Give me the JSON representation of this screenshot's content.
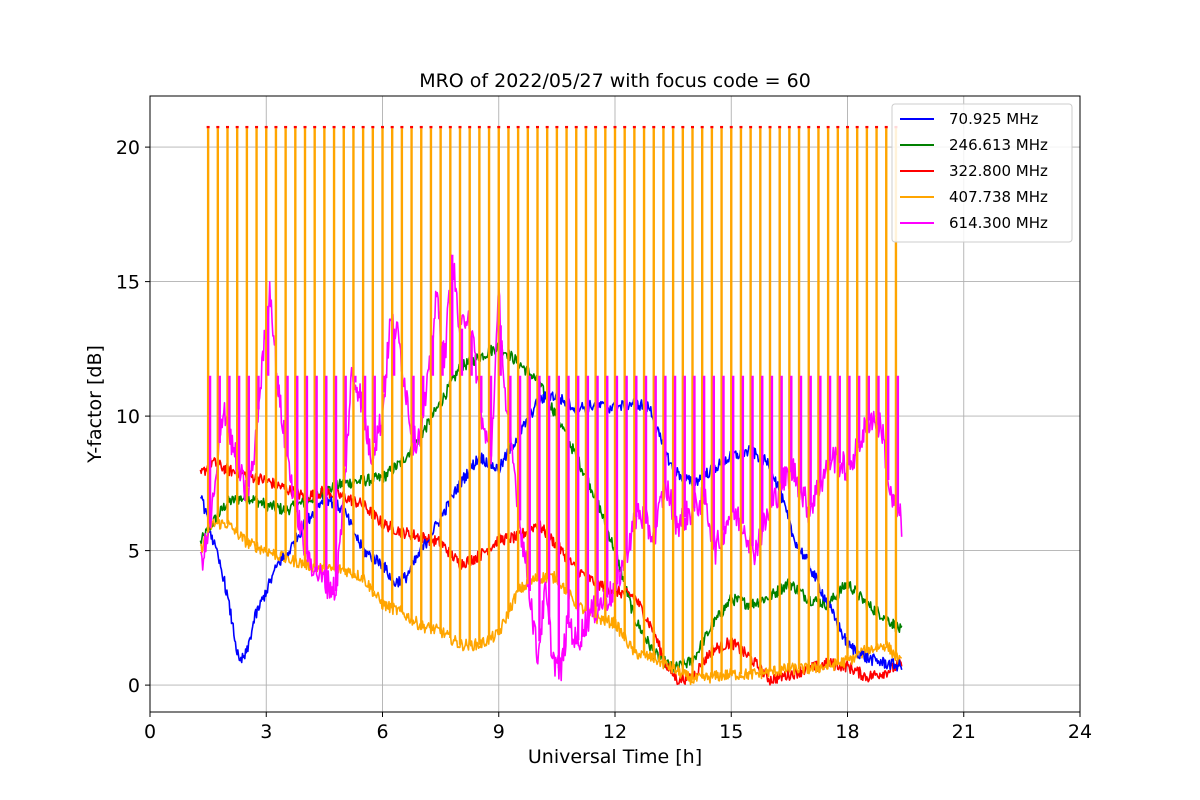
{
  "chart_data": {
    "type": "line",
    "title": "MRO of 2022/05/27 with focus code = 60",
    "xlabel": "Universal Time [h]",
    "ylabel": "Y-factor [dB]",
    "xlim": [
      0,
      24
    ],
    "ylim": [
      -1,
      21.9
    ],
    "xticks": [
      0,
      3,
      6,
      9,
      12,
      15,
      18,
      21,
      24
    ],
    "yticks": [
      0,
      5,
      10,
      15,
      20
    ],
    "grid": true,
    "legend_position": "top-right",
    "spikes": {
      "description_note": "",
      "x_start": 1.5,
      "x_end": 19.3,
      "period_h": 0.25,
      "orange_peak": 20.7,
      "red_tip": 20.75,
      "magenta_peak": 11.5
    },
    "series": [
      {
        "name": " 70.925 MHz",
        "color": "#0000ff",
        "x": [
          1.3,
          1.5,
          1.7,
          1.9,
          2.1,
          2.3,
          2.5,
          2.7,
          3.0,
          3.3,
          3.6,
          4.0,
          4.5,
          5.0,
          5.5,
          6.0,
          6.3,
          6.6,
          7.0,
          7.5,
          8.0,
          8.5,
          9.0,
          9.3,
          9.6,
          10.0,
          10.3,
          10.5,
          11.0,
          11.5,
          12.0,
          12.5,
          12.9,
          13.2,
          13.5,
          14.0,
          14.5,
          15.0,
          15.5,
          16.0,
          16.3,
          16.6,
          17.0,
          17.5,
          18.0,
          18.5,
          19.0,
          19.4
        ],
        "values": [
          7.2,
          6.0,
          5.0,
          4.0,
          2.5,
          0.8,
          1.2,
          2.5,
          3.5,
          4.5,
          5.0,
          6.0,
          7.0,
          6.5,
          5.0,
          4.5,
          3.8,
          4.0,
          5.0,
          6.2,
          7.5,
          8.5,
          8.0,
          8.8,
          9.5,
          10.5,
          10.8,
          10.7,
          10.3,
          10.4,
          10.3,
          10.5,
          10.3,
          9.0,
          8.0,
          7.5,
          8.0,
          8.5,
          8.7,
          8.2,
          7.0,
          5.5,
          4.5,
          3.0,
          1.5,
          1.0,
          0.8,
          0.7
        ]
      },
      {
        "name": "246.613 MHz",
        "color": "#008000",
        "x": [
          1.3,
          1.6,
          2.0,
          2.5,
          3.0,
          3.5,
          4.0,
          4.5,
          5.0,
          5.5,
          6.0,
          6.5,
          7.0,
          7.5,
          8.0,
          8.5,
          9.0,
          9.5,
          10.0,
          10.5,
          11.0,
          11.5,
          12.0,
          12.5,
          13.0,
          13.5,
          14.0,
          14.5,
          15.0,
          15.5,
          16.0,
          16.5,
          17.0,
          17.5,
          18.0,
          18.5,
          19.0,
          19.4
        ],
        "values": [
          5.3,
          6.0,
          6.8,
          7.0,
          6.7,
          6.5,
          6.8,
          7.2,
          7.5,
          7.6,
          7.7,
          8.3,
          9.3,
          10.5,
          11.8,
          12.2,
          12.6,
          12.0,
          11.3,
          10.0,
          8.5,
          7.0,
          5.0,
          2.5,
          1.2,
          0.6,
          0.9,
          2.2,
          3.2,
          3.0,
          3.3,
          3.8,
          3.2,
          3.0,
          3.8,
          3.0,
          2.5,
          2.0
        ]
      },
      {
        "name": "322.800 MHz",
        "color": "#ff0000",
        "x": [
          1.3,
          1.6,
          2.0,
          2.5,
          3.0,
          3.5,
          4.0,
          4.5,
          5.0,
          5.5,
          6.0,
          6.5,
          7.0,
          7.5,
          8.0,
          8.5,
          9.0,
          9.5,
          10.0,
          10.5,
          11.0,
          11.5,
          12.0,
          12.5,
          13.0,
          13.3,
          13.6,
          14.0,
          14.5,
          15.0,
          15.5,
          16.0,
          16.5,
          17.0,
          17.5,
          18.0,
          18.5,
          19.0,
          19.4
        ],
        "values": [
          7.8,
          8.3,
          8.0,
          7.8,
          7.6,
          7.3,
          7.0,
          7.2,
          7.0,
          6.7,
          6.0,
          5.7,
          5.5,
          5.3,
          4.5,
          4.8,
          5.4,
          5.5,
          6.0,
          5.2,
          4.3,
          3.8,
          3.5,
          3.3,
          2.0,
          0.8,
          0.2,
          0.3,
          1.3,
          1.6,
          1.0,
          0.2,
          0.4,
          0.6,
          0.8,
          0.7,
          0.3,
          0.5,
          0.8
        ]
      },
      {
        "name": "407.738 MHz",
        "color": "#ffa500",
        "x": [
          1.3,
          1.6,
          2.0,
          2.5,
          3.0,
          3.5,
          4.0,
          4.5,
          5.0,
          5.5,
          6.0,
          6.5,
          7.0,
          7.5,
          8.0,
          8.5,
          9.0,
          9.5,
          10.0,
          10.5,
          11.0,
          11.5,
          12.0,
          12.5,
          13.0,
          13.5,
          14.0,
          14.5,
          15.0,
          15.5,
          16.0,
          16.5,
          17.0,
          17.5,
          18.0,
          18.5,
          19.0,
          19.4
        ],
        "values": [
          5.0,
          6.0,
          6.0,
          5.3,
          5.0,
          4.7,
          4.5,
          4.3,
          4.3,
          4.0,
          3.0,
          2.7,
          2.2,
          2.0,
          1.5,
          1.5,
          1.9,
          3.5,
          4.0,
          4.0,
          3.0,
          2.5,
          2.3,
          1.2,
          1.0,
          0.6,
          0.2,
          0.3,
          0.4,
          0.4,
          0.5,
          0.6,
          0.6,
          0.7,
          0.9,
          1.3,
          1.5,
          0.8
        ]
      },
      {
        "name": "614.300 MHz",
        "color": "#ff00ff",
        "x": [
          1.3,
          1.5,
          1.7,
          1.9,
          2.1,
          2.3,
          2.5,
          2.7,
          2.9,
          3.1,
          3.3,
          3.6,
          4.0,
          4.4,
          4.8,
          5.0,
          5.2,
          5.4,
          5.7,
          6.0,
          6.2,
          6.4,
          6.6,
          6.8,
          7.0,
          7.2,
          7.4,
          7.6,
          7.8,
          8.0,
          8.2,
          8.4,
          8.6,
          8.8,
          9.0,
          9.2,
          9.4,
          9.6,
          9.8,
          10.0,
          10.2,
          10.4,
          10.6,
          10.8,
          11.0,
          11.3,
          11.6,
          12.0,
          12.3,
          12.6,
          13.0,
          13.3,
          13.6,
          14.0,
          14.3,
          14.6,
          15.0,
          15.3,
          15.6,
          16.0,
          16.3,
          16.6,
          17.0,
          17.3,
          17.6,
          18.0,
          18.3,
          18.6,
          18.9,
          19.1,
          19.3,
          19.4
        ],
        "values": [
          4.5,
          5.5,
          7.5,
          10.5,
          9.0,
          8.0,
          7.0,
          8.5,
          12.0,
          14.8,
          11.0,
          8.0,
          5.0,
          4.0,
          3.5,
          7.0,
          11.5,
          11.0,
          8.5,
          10.0,
          13.5,
          13.0,
          11.0,
          9.0,
          9.5,
          11.5,
          14.5,
          12.0,
          16.0,
          13.0,
          14.0,
          12.0,
          9.5,
          8.5,
          14.5,
          10.0,
          8.0,
          5.5,
          3.5,
          1.0,
          3.5,
          1.0,
          0.5,
          2.5,
          1.5,
          2.5,
          3.0,
          3.5,
          5.0,
          6.5,
          5.5,
          7.5,
          6.0,
          6.5,
          7.0,
          5.0,
          6.5,
          6.0,
          5.0,
          6.5,
          7.5,
          8.0,
          6.5,
          7.5,
          8.5,
          8.0,
          9.0,
          10.0,
          9.5,
          7.0,
          6.5,
          6.0
        ]
      }
    ]
  }
}
